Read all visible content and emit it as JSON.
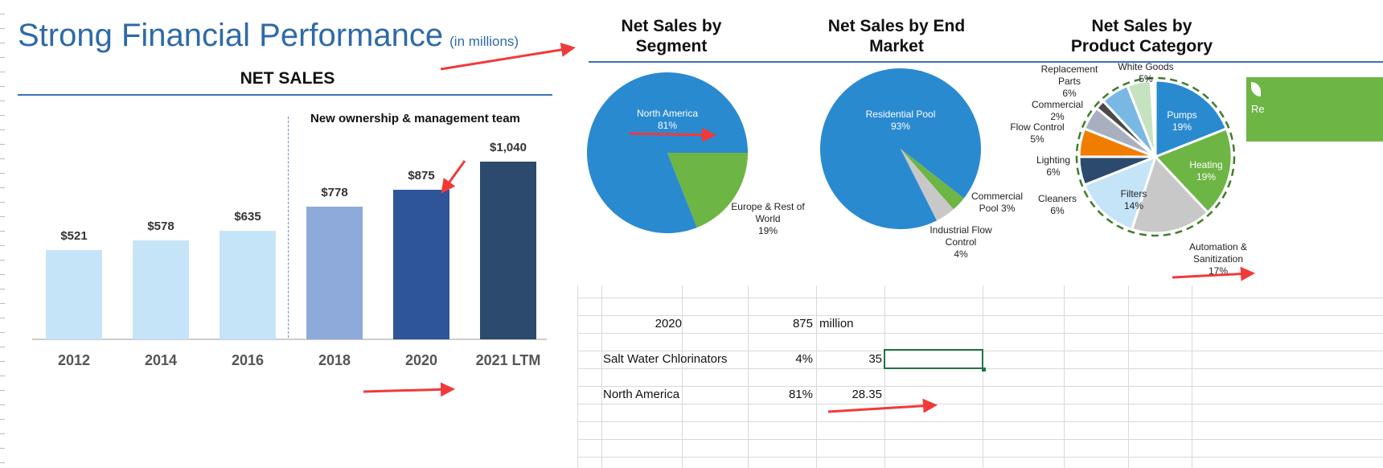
{
  "slide": {
    "title": "Strong Financial Performance",
    "title_unit": "(in millions)",
    "section": "NET SALES",
    "annotation": "New ownership & management team",
    "chart_data": {
      "type": "bar",
      "categories": [
        "2012",
        "2014",
        "2016",
        "2018",
        "2020",
        "2021 LTM"
      ],
      "values": [
        521,
        578,
        635,
        778,
        875,
        1040
      ],
      "labels": [
        "$521",
        "$578",
        "$635",
        "$778",
        "$875",
        "$1,040"
      ],
      "colors": [
        "#c6e4f7",
        "#c6e4f7",
        "#c6e4f7",
        "#8eaadb",
        "#2e5597",
        "#2c4a6e"
      ],
      "ylim": [
        0,
        1040
      ]
    }
  },
  "pies": [
    {
      "title": "Net Sales by Segment",
      "slices": [
        {
          "label": "North America",
          "pct": "81%",
          "value": 81,
          "color": "#2a8ad0"
        },
        {
          "label": "Europe & Rest of World",
          "pct": "19%",
          "value": 19,
          "color": "#6db544"
        }
      ]
    },
    {
      "title": "Net Sales by End Market",
      "slices": [
        {
          "label": "Residential Pool",
          "pct": "93%",
          "value": 93,
          "color": "#2a8ad0"
        },
        {
          "label": "Commercial Pool",
          "pct": "3%",
          "value": 3,
          "color": "#6db544"
        },
        {
          "label": "Industrial Flow Control",
          "pct": "4%",
          "value": 4,
          "color": "#c8c8c8"
        }
      ]
    },
    {
      "title": "Net Sales by Product Category",
      "slices": [
        {
          "label": "Pumps",
          "pct": "19%",
          "value": 19,
          "color": "#2a8ad0"
        },
        {
          "label": "Heating",
          "pct": "19%",
          "value": 19,
          "color": "#6db544"
        },
        {
          "label": "Automation & Sanitization",
          "pct": "17%",
          "value": 17,
          "color": "#c8c8c8"
        },
        {
          "label": "Filters",
          "pct": "14%",
          "value": 14,
          "color": "#c6e4f7"
        },
        {
          "label": "Cleaners",
          "pct": "6%",
          "value": 6,
          "color": "#2c4a6e"
        },
        {
          "label": "Lighting",
          "pct": "6%",
          "value": 6,
          "color": "#f07d00"
        },
        {
          "label": "Flow Control",
          "pct": "5%",
          "value": 5,
          "color": "#a8b0c0"
        },
        {
          "label": "Commercial",
          "pct": "2%",
          "value": 2,
          "color": "#4a4a4a"
        },
        {
          "label": "Replacement Parts",
          "pct": "6%",
          "value": 6,
          "color": "#7ab8e4"
        },
        {
          "label": "White Goods",
          "pct": "5%",
          "value": 5,
          "color": "#c5e3c0"
        }
      ]
    }
  ],
  "side_badge": "Re",
  "sheet": {
    "rows": [
      {
        "a": "2020",
        "b": "875",
        "c": "million"
      },
      {
        "a": "Salt Water Chlorinators",
        "b": "4%",
        "c": "35"
      },
      {
        "a": "North America",
        "b": "81%",
        "c": "28.35"
      }
    ]
  },
  "colors": {
    "annotation_arrow": "#f03a3a",
    "selection": "#217346"
  }
}
